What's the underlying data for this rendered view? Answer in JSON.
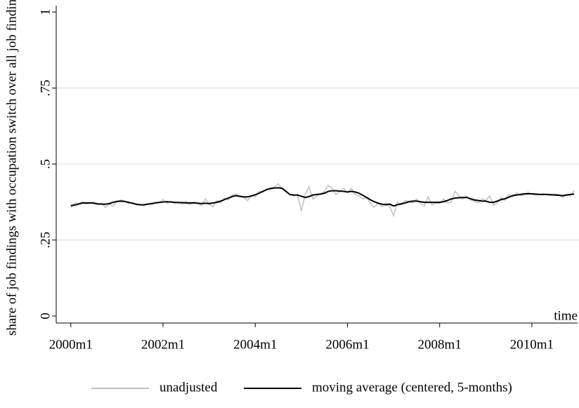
{
  "chart_data": {
    "type": "line",
    "y_label": "share of job findings with occupation switch over all job findings",
    "x_label": "time",
    "x": [
      480,
      481,
      482,
      483,
      484,
      485,
      486,
      487,
      488,
      489,
      490,
      491,
      492,
      493,
      494,
      495,
      496,
      497,
      498,
      499,
      500,
      501,
      502,
      503,
      504,
      505,
      506,
      507,
      508,
      509,
      510,
      511,
      512,
      513,
      514,
      515,
      516,
      517,
      518,
      519,
      520,
      521,
      522,
      523,
      524,
      525,
      526,
      527,
      528,
      529,
      530,
      531,
      532,
      533,
      534,
      535,
      536,
      537,
      538,
      539,
      540,
      541,
      542,
      543,
      544,
      545,
      546,
      547,
      548,
      549,
      550,
      551,
      552,
      553,
      554,
      555,
      556,
      557,
      558,
      559,
      560,
      561,
      562,
      563,
      564,
      565,
      566,
      567,
      568,
      569,
      570,
      571,
      572,
      573,
      574,
      575,
      576,
      577,
      578,
      579,
      580,
      581,
      582,
      583,
      584,
      585,
      586,
      587,
      588,
      589,
      590,
      591,
      592,
      593,
      594,
      595,
      596,
      597,
      598,
      599,
      600,
      601,
      602,
      603,
      604,
      605,
      606,
      607,
      608,
      609,
      610,
      611
    ],
    "series": [
      {
        "name": "unadjusted",
        "color": "#c0c0c0",
        "values": [
          0.355,
          0.372,
          0.37,
          0.375,
          0.368,
          0.372,
          0.375,
          0.366,
          0.372,
          0.358,
          0.368,
          0.362,
          0.376,
          0.382,
          0.378,
          0.37,
          0.375,
          0.365,
          0.368,
          0.362,
          0.37,
          0.366,
          0.374,
          0.372,
          0.383,
          0.371,
          0.378,
          0.37,
          0.376,
          0.368,
          0.378,
          0.366,
          0.376,
          0.372,
          0.363,
          0.385,
          0.368,
          0.36,
          0.38,
          0.372,
          0.388,
          0.382,
          0.398,
          0.402,
          0.392,
          0.39,
          0.38,
          0.396,
          0.392,
          0.41,
          0.408,
          0.418,
          0.415,
          0.425,
          0.435,
          0.418,
          0.412,
          0.398,
          0.395,
          0.4,
          0.345,
          0.4,
          0.425,
          0.385,
          0.395,
          0.402,
          0.41,
          0.43,
          0.42,
          0.4,
          0.41,
          0.42,
          0.405,
          0.42,
          0.4,
          0.395,
          0.385,
          0.39,
          0.37,
          0.358,
          0.372,
          0.36,
          0.372,
          0.36,
          0.33,
          0.375,
          0.365,
          0.38,
          0.376,
          0.372,
          0.385,
          0.37,
          0.362,
          0.392,
          0.366,
          0.372,
          0.37,
          0.385,
          0.372,
          0.375,
          0.41,
          0.395,
          0.385,
          0.395,
          0.382,
          0.378,
          0.372,
          0.385,
          0.38,
          0.395,
          0.365,
          0.372,
          0.39,
          0.38,
          0.4,
          0.392,
          0.405,
          0.396,
          0.398,
          0.408,
          0.4,
          0.398,
          0.4,
          0.402,
          0.398,
          0.397,
          0.402,
          0.4,
          0.39,
          0.4,
          0.395,
          0.412
        ]
      },
      {
        "name": "moving average (centered, 5-months)",
        "color": "#000000",
        "values": [
          0.363,
          0.365,
          0.368,
          0.372,
          0.372,
          0.372,
          0.371,
          0.369,
          0.368,
          0.368,
          0.37,
          0.374,
          0.377,
          0.378,
          0.377,
          0.374,
          0.371,
          0.368,
          0.366,
          0.366,
          0.368,
          0.37,
          0.372,
          0.374,
          0.375,
          0.376,
          0.375,
          0.374,
          0.373,
          0.373,
          0.372,
          0.372,
          0.372,
          0.371,
          0.37,
          0.371,
          0.37,
          0.372,
          0.374,
          0.378,
          0.383,
          0.388,
          0.393,
          0.396,
          0.394,
          0.392,
          0.392,
          0.395,
          0.399,
          0.404,
          0.41,
          0.416,
          0.42,
          0.421,
          0.422,
          0.42,
          0.41,
          0.4,
          0.398,
          0.398,
          0.394,
          0.39,
          0.393,
          0.398,
          0.4,
          0.401,
          0.404,
          0.41,
          0.412,
          0.412,
          0.411,
          0.41,
          0.408,
          0.41,
          0.408,
          0.404,
          0.397,
          0.39,
          0.382,
          0.376,
          0.371,
          0.368,
          0.366,
          0.368,
          0.362,
          0.366,
          0.369,
          0.372,
          0.376,
          0.378,
          0.378,
          0.376,
          0.374,
          0.374,
          0.374,
          0.374,
          0.374,
          0.376,
          0.38,
          0.385,
          0.388,
          0.389,
          0.39,
          0.39,
          0.386,
          0.382,
          0.38,
          0.378,
          0.378,
          0.374,
          0.374,
          0.378,
          0.383,
          0.386,
          0.391,
          0.396,
          0.398,
          0.4,
          0.402,
          0.402,
          0.402,
          0.401,
          0.4,
          0.4,
          0.4,
          0.399,
          0.398,
          0.397,
          0.396,
          0.398,
          0.4,
          0.401
        ]
      }
    ],
    "xlim": [
      476.2,
      611.9
    ],
    "xticks": [
      {
        "value": 480,
        "label": "2000m1"
      },
      {
        "value": 504,
        "label": "2002m1"
      },
      {
        "value": 528,
        "label": "2004m1"
      },
      {
        "value": 552,
        "label": "2006m1"
      },
      {
        "value": 576,
        "label": "2008m1"
      },
      {
        "value": 600,
        "label": "2010m1"
      }
    ],
    "ylim": [
      -0.023,
      1.021
    ],
    "yticks": [
      0,
      {
        "value": 0.25,
        "label": ".25"
      },
      {
        "value": 0.5,
        "label": ".5"
      },
      {
        "value": 0.75,
        "label": ".75"
      },
      1
    ],
    "grid": true
  }
}
